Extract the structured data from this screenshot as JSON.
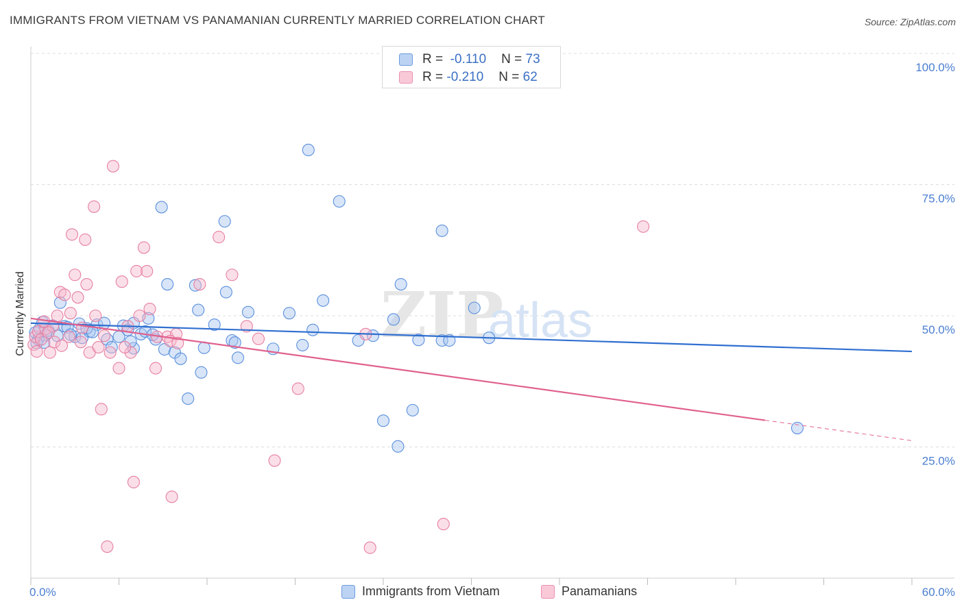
{
  "title": "IMMIGRANTS FROM VIETNAM VS PANAMANIAN CURRENTLY MARRIED CORRELATION CHART",
  "source": "Source: ZipAtlas.com",
  "watermark": {
    "zip": "ZIP",
    "atlas": "atlas"
  },
  "legend_top": [
    {
      "r_label": "R =",
      "r_value": "-0.110",
      "n_label": "N =",
      "n_value": "73"
    },
    {
      "r_label": "R =",
      "r_value": "-0.210",
      "n_label": "N =",
      "n_value": "62"
    }
  ],
  "legend_bottom": [
    "Immigrants from Vietnam",
    "Panamanians"
  ],
  "colors": {
    "blue_fill": "#a8c6f0",
    "blue_stroke": "#5a8fdc",
    "blue_line": "#2f6fd0",
    "pink_fill": "#f6b8cc",
    "pink_stroke": "#e67fa2",
    "pink_line": "#e0608e",
    "tick_text": "#4a7ed0",
    "grid": "#dcdcdc"
  },
  "chart_data": {
    "type": "scatter",
    "title": "IMMIGRANTS FROM VIETNAM VS PANAMANIAN CURRENTLY MARRIED CORRELATION CHART",
    "xlabel": "",
    "ylabel": "Currently Married",
    "xlim": [
      0,
      60
    ],
    "ylim": [
      0,
      100
    ],
    "x_tick_labels": [
      "0.0%",
      "60.0%"
    ],
    "y_tick_labels": [
      "25.0%",
      "50.0%",
      "75.0%",
      "100.0%"
    ],
    "y_ticks": [
      25,
      50,
      75,
      100
    ],
    "grid": true,
    "legend_position": "top-center",
    "series": [
      {
        "name": "Immigrants from Vietnam",
        "color": "blue",
        "trend": {
          "x": [
            0,
            60
          ],
          "y": [
            48.6,
            43.2
          ],
          "dashed_from": null
        },
        "points": [
          [
            0.3,
            46.8
          ],
          [
            0.6,
            47.5
          ],
          [
            0.8,
            48.8
          ],
          [
            1.0,
            46.3
          ],
          [
            1.2,
            47.2
          ],
          [
            0.5,
            45.5
          ],
          [
            1.5,
            48.1
          ],
          [
            2.0,
            52.5
          ],
          [
            2.3,
            48.0
          ],
          [
            2.5,
            47.8
          ],
          [
            3.0,
            46.0
          ],
          [
            3.3,
            48.5
          ],
          [
            3.5,
            45.8
          ],
          [
            4.0,
            47.0
          ],
          [
            4.5,
            48.3
          ],
          [
            5.0,
            48.6
          ],
          [
            5.2,
            45.5
          ],
          [
            5.5,
            44.0
          ],
          [
            6.0,
            46.0
          ],
          [
            6.3,
            48.1
          ],
          [
            6.6,
            47.3
          ],
          [
            7.0,
            43.8
          ],
          [
            7.0,
            48.6
          ],
          [
            7.5,
            46.5
          ],
          [
            7.8,
            47.0
          ],
          [
            8.0,
            49.5
          ],
          [
            8.5,
            45.5
          ],
          [
            8.9,
            70.7
          ],
          [
            9.1,
            43.6
          ],
          [
            9.3,
            56.0
          ],
          [
            9.8,
            43.0
          ],
          [
            10.2,
            41.8
          ],
          [
            10.7,
            34.2
          ],
          [
            11.2,
            55.8
          ],
          [
            11.4,
            51.1
          ],
          [
            11.6,
            39.2
          ],
          [
            11.8,
            43.9
          ],
          [
            12.5,
            48.3
          ],
          [
            13.2,
            68.0
          ],
          [
            13.3,
            54.5
          ],
          [
            13.7,
            45.3
          ],
          [
            13.9,
            44.9
          ],
          [
            14.1,
            42.0
          ],
          [
            14.8,
            50.7
          ],
          [
            16.5,
            43.7
          ],
          [
            17.6,
            50.5
          ],
          [
            18.5,
            44.4
          ],
          [
            18.9,
            81.6
          ],
          [
            19.2,
            47.3
          ],
          [
            19.9,
            52.9
          ],
          [
            21.0,
            71.8
          ],
          [
            22.3,
            45.3
          ],
          [
            23.3,
            46.2
          ],
          [
            24.0,
            30.0
          ],
          [
            24.7,
            49.3
          ],
          [
            25.0,
            25.1
          ],
          [
            25.2,
            56.0
          ],
          [
            26.0,
            32.0
          ],
          [
            26.4,
            45.4
          ],
          [
            28.0,
            66.2
          ],
          [
            28.0,
            45.3
          ],
          [
            28.5,
            45.3
          ],
          [
            30.2,
            51.5
          ],
          [
            31.2,
            45.8
          ],
          [
            52.2,
            28.6
          ],
          [
            0.4,
            44.8
          ],
          [
            1.8,
            46.2
          ],
          [
            2.7,
            46.4
          ],
          [
            3.8,
            47.6
          ],
          [
            6.8,
            45.1
          ],
          [
            0.9,
            44.9
          ],
          [
            4.2,
            46.9
          ],
          [
            8.3,
            46.4
          ]
        ]
      },
      {
        "name": "Panamanians",
        "color": "pink",
        "trend": {
          "x": [
            0,
            60
          ],
          "y": [
            49.5,
            26.2
          ],
          "dashed_from": 50.0
        },
        "points": [
          [
            0.2,
            44.5
          ],
          [
            0.3,
            46.0
          ],
          [
            0.5,
            47.0
          ],
          [
            0.7,
            45.5
          ],
          [
            1.0,
            47.5
          ],
          [
            1.3,
            43.0
          ],
          [
            1.5,
            48.0
          ],
          [
            1.6,
            45.0
          ],
          [
            1.8,
            50.0
          ],
          [
            2.0,
            54.5
          ],
          [
            2.3,
            54.0
          ],
          [
            2.6,
            46.0
          ],
          [
            2.7,
            50.5
          ],
          [
            2.8,
            65.5
          ],
          [
            3.0,
            57.8
          ],
          [
            3.2,
            53.5
          ],
          [
            3.4,
            45.0
          ],
          [
            3.7,
            64.5
          ],
          [
            3.8,
            56.0
          ],
          [
            4.0,
            43.0
          ],
          [
            4.3,
            70.8
          ],
          [
            4.4,
            50.0
          ],
          [
            4.6,
            44.0
          ],
          [
            4.8,
            32.2
          ],
          [
            5.2,
            6.0
          ],
          [
            5.4,
            43.0
          ],
          [
            5.6,
            78.5
          ],
          [
            6.0,
            40.0
          ],
          [
            6.2,
            56.5
          ],
          [
            6.6,
            48.0
          ],
          [
            6.8,
            43.0
          ],
          [
            7.0,
            18.3
          ],
          [
            7.2,
            58.5
          ],
          [
            7.4,
            50.0
          ],
          [
            7.7,
            63.0
          ],
          [
            7.9,
            58.5
          ],
          [
            8.1,
            51.3
          ],
          [
            8.5,
            40.0
          ],
          [
            8.6,
            46.0
          ],
          [
            9.3,
            46.0
          ],
          [
            9.6,
            15.5
          ],
          [
            9.9,
            46.5
          ],
          [
            11.5,
            56.0
          ],
          [
            12.8,
            65.0
          ],
          [
            13.7,
            57.8
          ],
          [
            14.7,
            48.0
          ],
          [
            15.5,
            45.6
          ],
          [
            16.6,
            22.4
          ],
          [
            18.2,
            36.1
          ],
          [
            22.8,
            46.5
          ],
          [
            23.1,
            5.8
          ],
          [
            28.1,
            10.3
          ],
          [
            41.7,
            67.0
          ],
          [
            0.4,
            43.2
          ],
          [
            0.9,
            48.9
          ],
          [
            1.2,
            46.8
          ],
          [
            2.1,
            44.3
          ],
          [
            3.5,
            47.7
          ],
          [
            5.0,
            46.2
          ],
          [
            6.4,
            44.0
          ],
          [
            9.5,
            45.2
          ],
          [
            10.0,
            44.8
          ]
        ]
      }
    ]
  }
}
